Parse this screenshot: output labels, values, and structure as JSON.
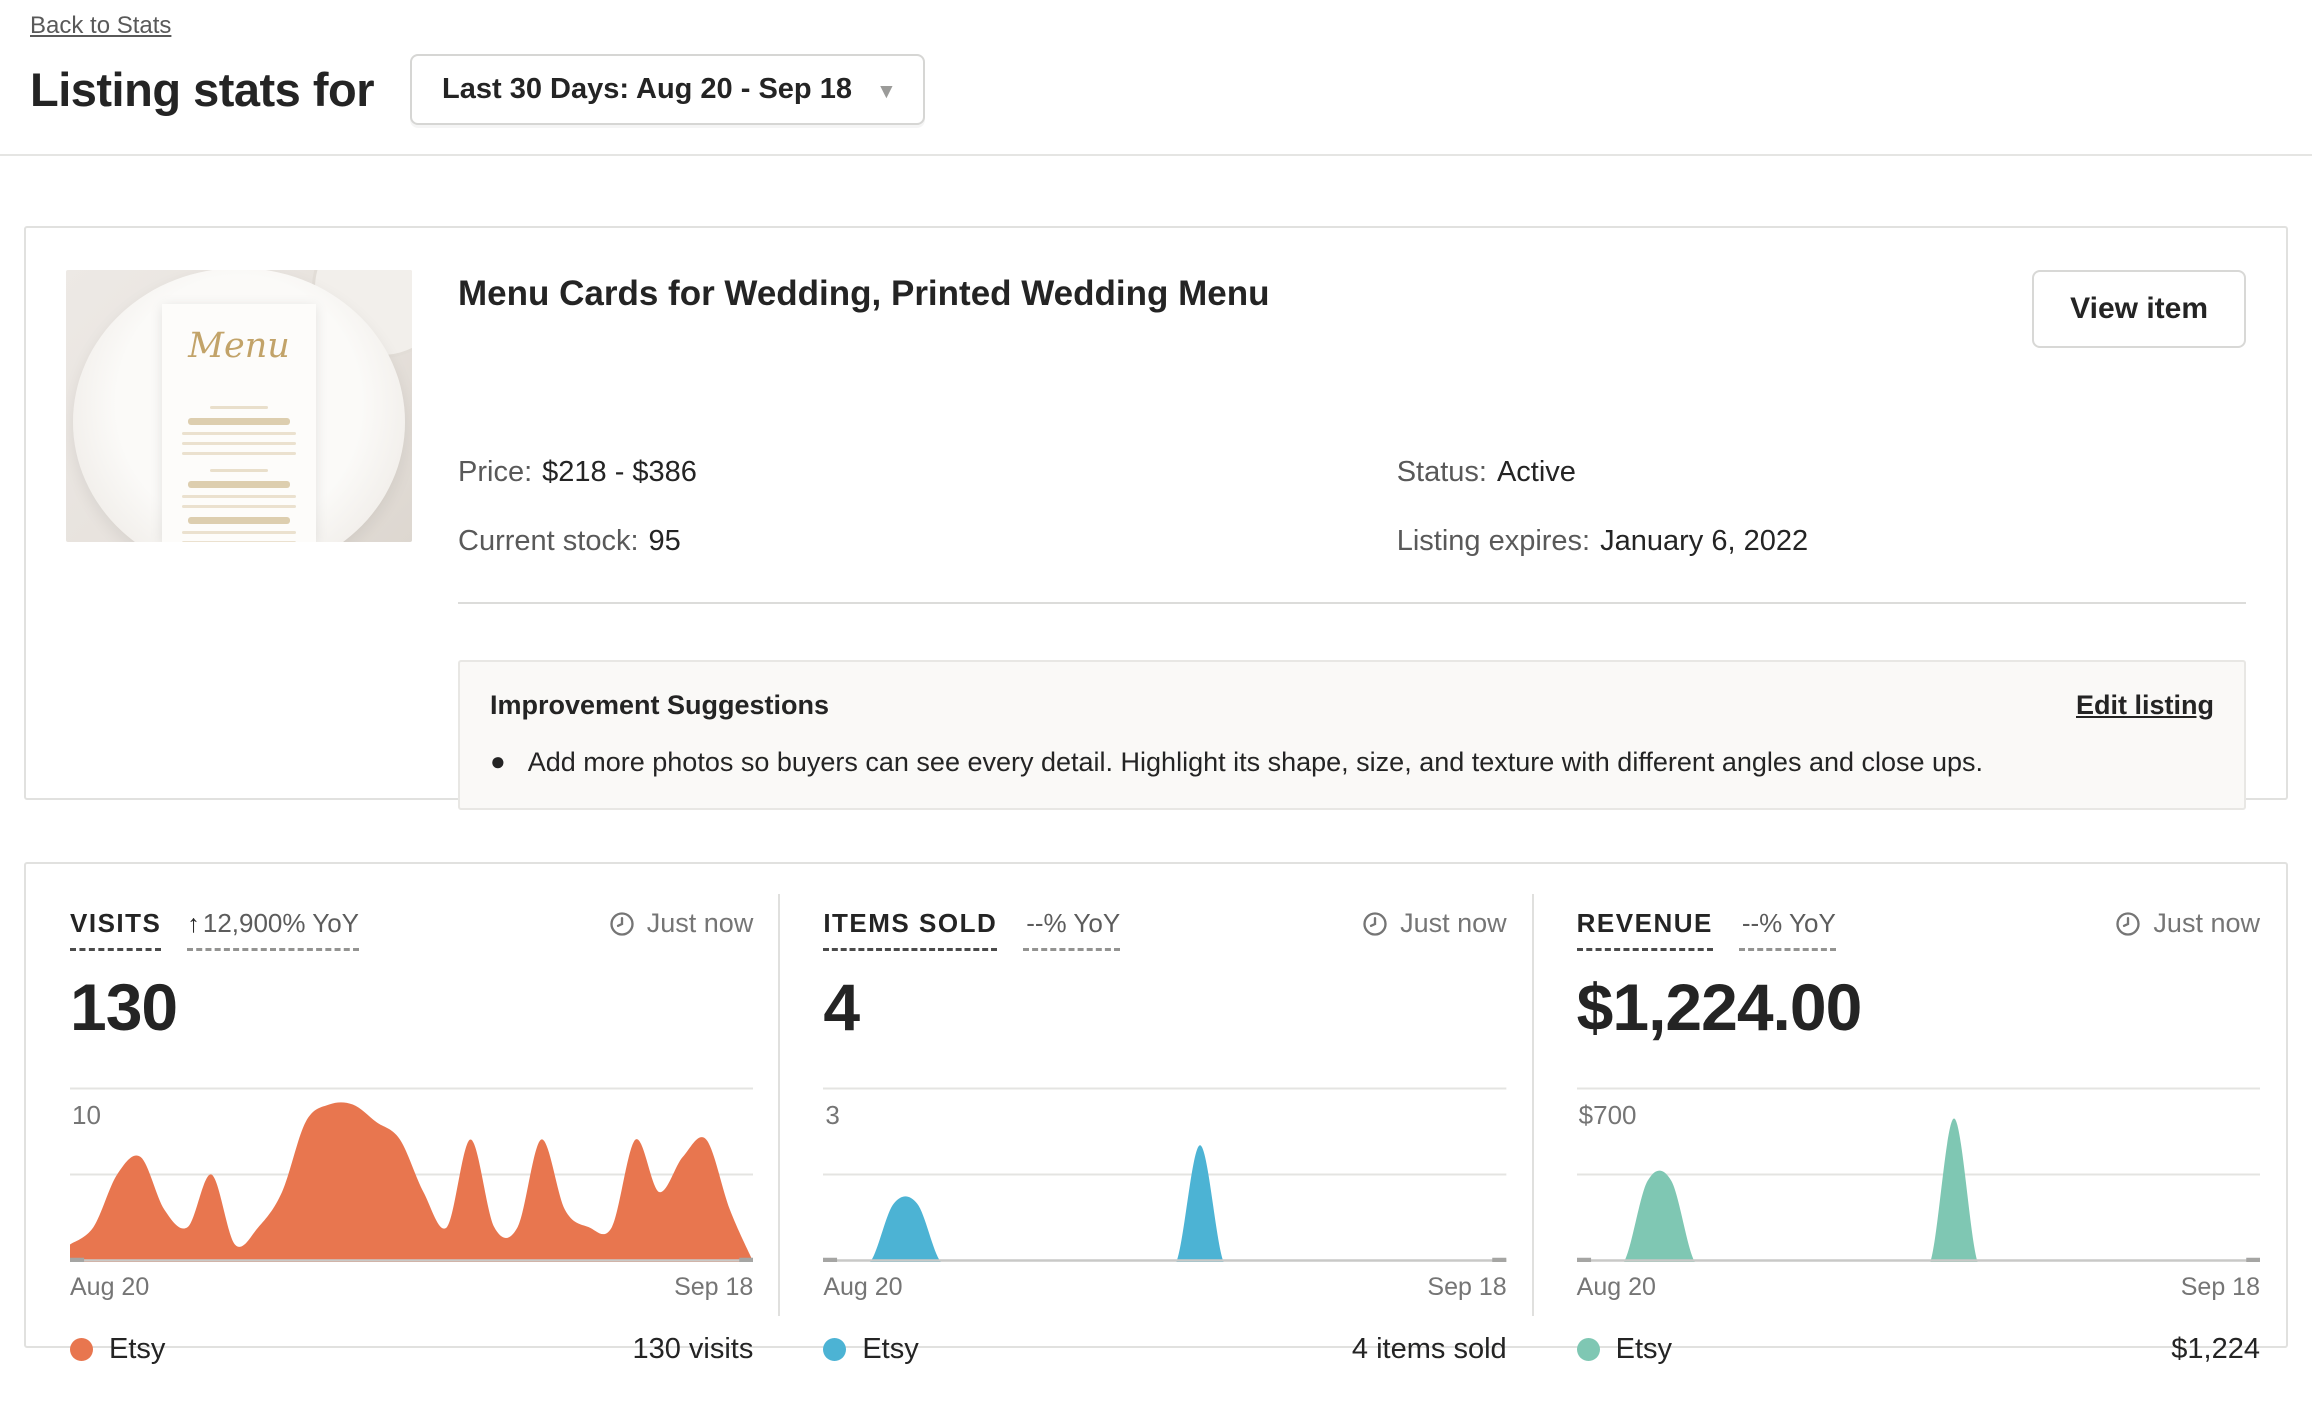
{
  "header": {
    "back_link": "Back to Stats",
    "title": "Listing stats for",
    "date_range_label": "Last 30 Days: Aug 20 - Sep 18"
  },
  "listing": {
    "title": "Menu Cards for Wedding, Printed Wedding Menu",
    "view_item_label": "View item",
    "image_text": "Menu",
    "details": {
      "price_label": "Price:",
      "price_value": "$218 - $386",
      "stock_label": "Current stock:",
      "stock_value": "95",
      "status_label": "Status:",
      "status_value": "Active",
      "expires_label": "Listing expires:",
      "expires_value": "January 6, 2022"
    },
    "suggestions": {
      "title": "Improvement Suggestions",
      "edit_link_label": "Edit listing",
      "bullet": "Add more photos so buyers can see every detail. Highlight its shape, size, and texture with different angles and close ups."
    }
  },
  "stats": {
    "panels": [
      {
        "label": "VISITS",
        "yoy_arrow": "↑",
        "yoy": "12,900% YoY",
        "updated": "Just now",
        "value": "130"
      },
      {
        "label": "ITEMS SOLD",
        "yoy_arrow": "",
        "yoy": "--% YoY",
        "updated": "Just now",
        "value": "4"
      },
      {
        "label": "REVENUE",
        "yoy_arrow": "",
        "yoy": "--% YoY",
        "updated": "Just now",
        "value": "$1,224.00"
      }
    ]
  },
  "chart_data": [
    {
      "type": "area",
      "title": "Visits per day",
      "x_start": "Aug 20",
      "x_end": "Sep 18",
      "ylim": [
        0,
        10
      ],
      "ymax_label": "10",
      "grid": true,
      "legend": "Etsy",
      "legend_position": "bottom-left",
      "total_label": "130 visits",
      "color": "#E8764F",
      "values": [
        1,
        2,
        5,
        6,
        3,
        2,
        5,
        1,
        2,
        4,
        8,
        9,
        9,
        8,
        7,
        4,
        2,
        7,
        2,
        2,
        7,
        3,
        2,
        2,
        7,
        4,
        6,
        7,
        3,
        0
      ]
    },
    {
      "type": "area",
      "title": "Items sold per day",
      "x_start": "Aug 20",
      "x_end": "Sep 18",
      "ylim": [
        0,
        3
      ],
      "ymax_label": "3",
      "grid": true,
      "legend": "Etsy",
      "legend_position": "bottom-left",
      "total_label": "4 items sold",
      "color": "#4CB3D4",
      "values": [
        0,
        0,
        0,
        1,
        1,
        0,
        0,
        0,
        0,
        0,
        0,
        0,
        0,
        0,
        0,
        0,
        2,
        0,
        0,
        0,
        0,
        0,
        0,
        0,
        0,
        0,
        0,
        0,
        0,
        0
      ]
    },
    {
      "type": "area",
      "title": "Revenue per day",
      "x_start": "Aug 20",
      "x_end": "Sep 18",
      "ylim": [
        0,
        700
      ],
      "ymax_label": "$700",
      "grid": true,
      "legend": "Etsy",
      "legend_position": "bottom-left",
      "total_label": "$1,224",
      "color": "#7FC7B3",
      "values": [
        0,
        0,
        0,
        325,
        325,
        0,
        0,
        0,
        0,
        0,
        0,
        0,
        0,
        0,
        0,
        0,
        574,
        0,
        0,
        0,
        0,
        0,
        0,
        0,
        0,
        0,
        0,
        0,
        0,
        0
      ]
    }
  ]
}
